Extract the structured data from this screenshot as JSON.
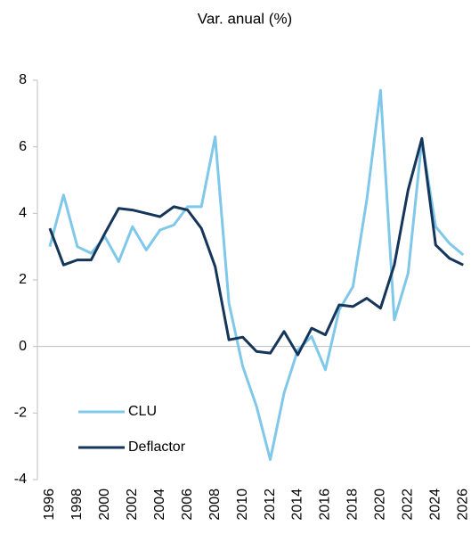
{
  "chart_data": {
    "type": "line",
    "title": "Var. anual (%)",
    "x": [
      1996,
      1997,
      1998,
      1999,
      2000,
      2001,
      2002,
      2003,
      2004,
      2005,
      2006,
      2007,
      2008,
      2009,
      2010,
      2011,
      2012,
      2013,
      2014,
      2015,
      2016,
      2017,
      2018,
      2019,
      2020,
      2021,
      2022,
      2023,
      2024,
      2025,
      2026
    ],
    "series": [
      {
        "name": "CLU",
        "color": "#7fc8ea",
        "values": [
          3.0,
          4.55,
          3.0,
          2.8,
          3.3,
          2.55,
          3.6,
          2.9,
          3.5,
          3.65,
          4.2,
          4.2,
          6.3,
          1.3,
          -0.6,
          -1.8,
          -3.4,
          -1.4,
          -0.1,
          0.3,
          -0.7,
          1.1,
          1.8,
          4.4,
          7.7,
          0.8,
          2.2,
          6.2,
          3.6,
          3.1,
          2.75
        ]
      },
      {
        "name": "Deflactor",
        "color": "#15355a",
        "values": [
          3.55,
          2.45,
          2.6,
          2.6,
          3.4,
          4.15,
          4.1,
          4.0,
          3.9,
          4.2,
          4.1,
          3.55,
          2.4,
          0.2,
          0.28,
          -0.15,
          -0.2,
          0.45,
          -0.25,
          0.55,
          0.35,
          1.25,
          1.2,
          1.45,
          1.15,
          2.45,
          4.7,
          6.25,
          3.05,
          2.65,
          2.45
        ]
      }
    ],
    "xlim": [
      1995.1,
      2026.5
    ],
    "xticks": [
      1996,
      1998,
      2000,
      2002,
      2004,
      2006,
      2008,
      2010,
      2012,
      2014,
      2016,
      2018,
      2020,
      2022,
      2024,
      2026
    ],
    "ylim": [
      -4,
      8
    ],
    "yticks": [
      -4,
      -2,
      0,
      2,
      4,
      6,
      8
    ],
    "legend": "lower-left"
  }
}
